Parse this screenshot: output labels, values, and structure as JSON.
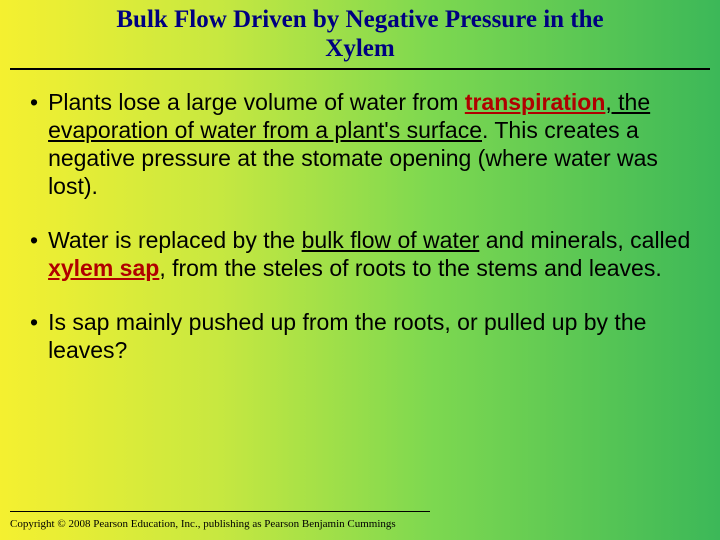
{
  "title_line1": "Bulk Flow Driven by Negative Pressure in the",
  "title_line2": "Xylem",
  "bullets": [
    {
      "pre": "Plants lose a large volume of water from ",
      "term1": "transpiration",
      "mid1": ", the ",
      "udef": "evaporation of water from a plant's surface",
      "post": ".  This creates a negative pressure at the stomate opening (where water was lost)."
    },
    {
      "pre": "Water is replaced by the ",
      "udef1": "bulk flow of water",
      "mid1": " and minerals, called ",
      "term1": "xylem sap",
      "post": ", from the steles of roots to the stems and leaves."
    },
    {
      "pre": "Is sap mainly pushed up from the roots, or pulled up by the leaves?"
    }
  ],
  "copyright": "Copyright © 2008 Pearson Education, Inc., publishing as Pearson Benjamin Cummings"
}
